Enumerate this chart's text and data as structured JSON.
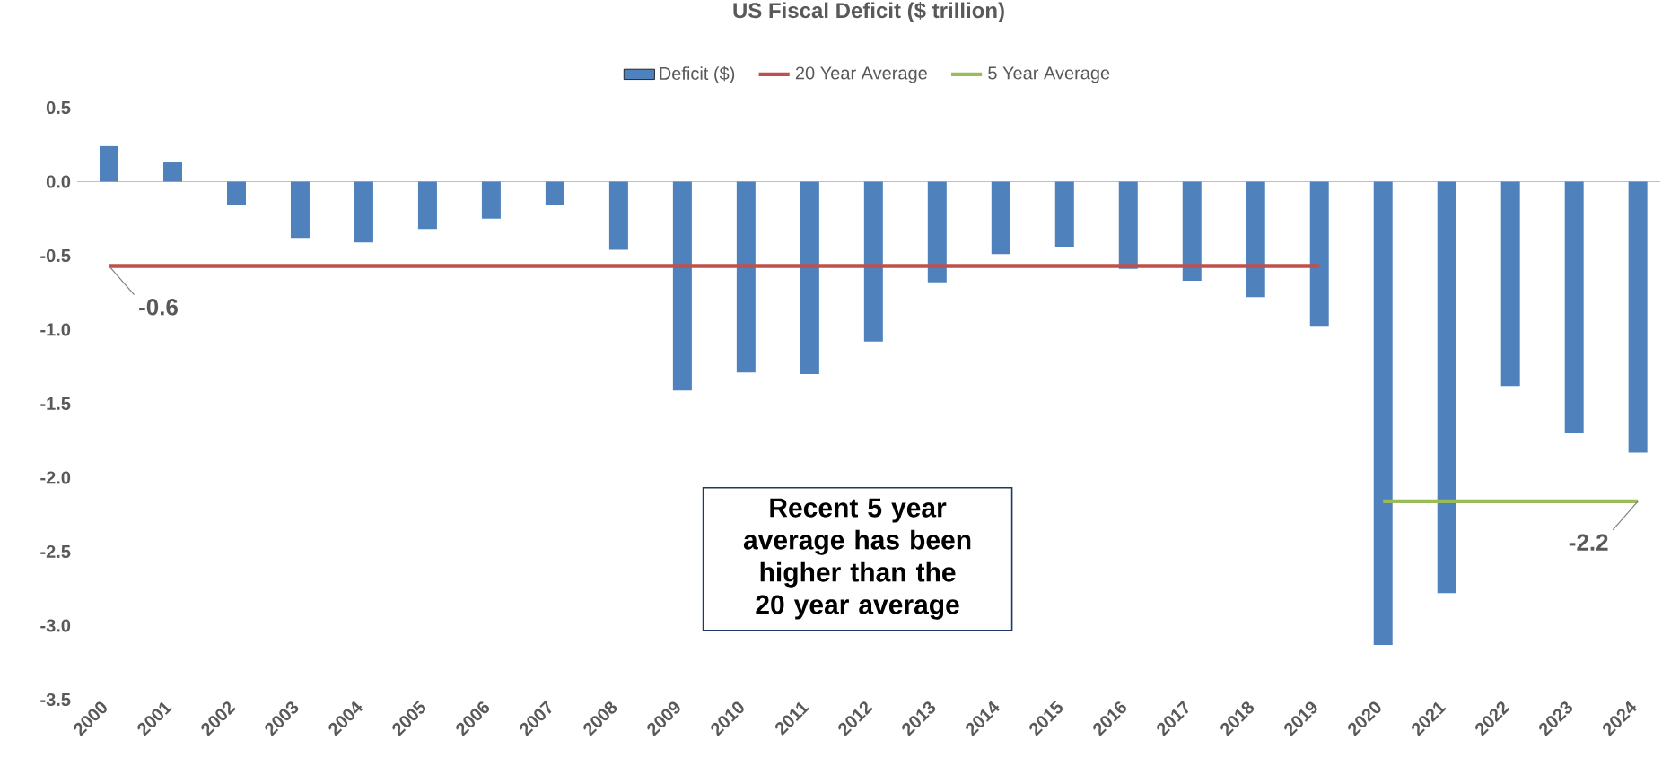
{
  "chart_data": {
    "type": "bar",
    "title": "US Fiscal Deficit ($ trillion)",
    "categories": [
      "2000",
      "2001",
      "2002",
      "2003",
      "2004",
      "2005",
      "2006",
      "2007",
      "2008",
      "2009",
      "2010",
      "2011",
      "2012",
      "2013",
      "2014",
      "2015",
      "2016",
      "2017",
      "2018",
      "2019",
      "2020",
      "2021",
      "2022",
      "2023",
      "2024"
    ],
    "series": [
      {
        "name": "Deficit ($)",
        "color": "#4f81bd",
        "values": [
          0.24,
          0.13,
          -0.16,
          -0.38,
          -0.41,
          -0.32,
          -0.25,
          -0.16,
          -0.46,
          -1.41,
          -1.29,
          -1.3,
          -1.08,
          -0.68,
          -0.49,
          -0.44,
          -0.59,
          -0.67,
          -0.78,
          -0.98,
          -3.13,
          -2.78,
          -1.38,
          -1.7,
          -1.83
        ]
      },
      {
        "name": "20 Year Average",
        "type": "line",
        "color": "#c0504d",
        "values": [
          -0.57,
          -0.57,
          -0.57,
          -0.57,
          -0.57,
          -0.57,
          -0.57,
          -0.57,
          -0.57,
          -0.57,
          -0.57,
          -0.57,
          -0.57,
          -0.57,
          -0.57,
          -0.57,
          -0.57,
          -0.57,
          -0.57,
          -0.57,
          null,
          null,
          null,
          null,
          null
        ],
        "value_labels": [
          "-0.6",
          null,
          null,
          null,
          null,
          null,
          null,
          null,
          null,
          null,
          null,
          null,
          null,
          null,
          null,
          null,
          null,
          null,
          null,
          null,
          null,
          null,
          null,
          null,
          null
        ]
      },
      {
        "name": "5 Year Average",
        "type": "line",
        "color": "#9bbb59",
        "values": [
          null,
          null,
          null,
          null,
          null,
          null,
          null,
          null,
          null,
          null,
          null,
          null,
          null,
          null,
          null,
          null,
          null,
          null,
          null,
          null,
          -2.16,
          -2.16,
          -2.16,
          -2.16,
          -2.16
        ],
        "value_labels": [
          null,
          null,
          null,
          null,
          null,
          null,
          null,
          null,
          null,
          null,
          null,
          null,
          null,
          null,
          null,
          null,
          null,
          null,
          null,
          null,
          null,
          null,
          null,
          null,
          "-2.2"
        ]
      }
    ],
    "ylim": [
      -3.5,
      0.5
    ],
    "yticks": [
      {
        "value": 0.5,
        "label": "0.5"
      },
      {
        "value": 0,
        "label": "0.0"
      },
      {
        "value": -0.5,
        "label": "-0.5"
      },
      {
        "value": -1,
        "label": "-1.0"
      },
      {
        "value": -1.5,
        "label": "-1.5"
      },
      {
        "value": -2,
        "label": "-2.0"
      },
      {
        "value": -2.5,
        "label": "-2.5"
      },
      {
        "value": -3,
        "label": "-3.0"
      },
      {
        "value": -3.5,
        "label": "-3.5"
      }
    ],
    "annotations": [
      "Recent 5 year average has been higher than the 20 year average"
    ],
    "ref_lines": [
      {
        "axis": "y",
        "value": 0,
        "color": "#bfbfbf"
      }
    ],
    "legend": "top",
    "grid": false,
    "marker": "none",
    "line_style": "solid"
  }
}
